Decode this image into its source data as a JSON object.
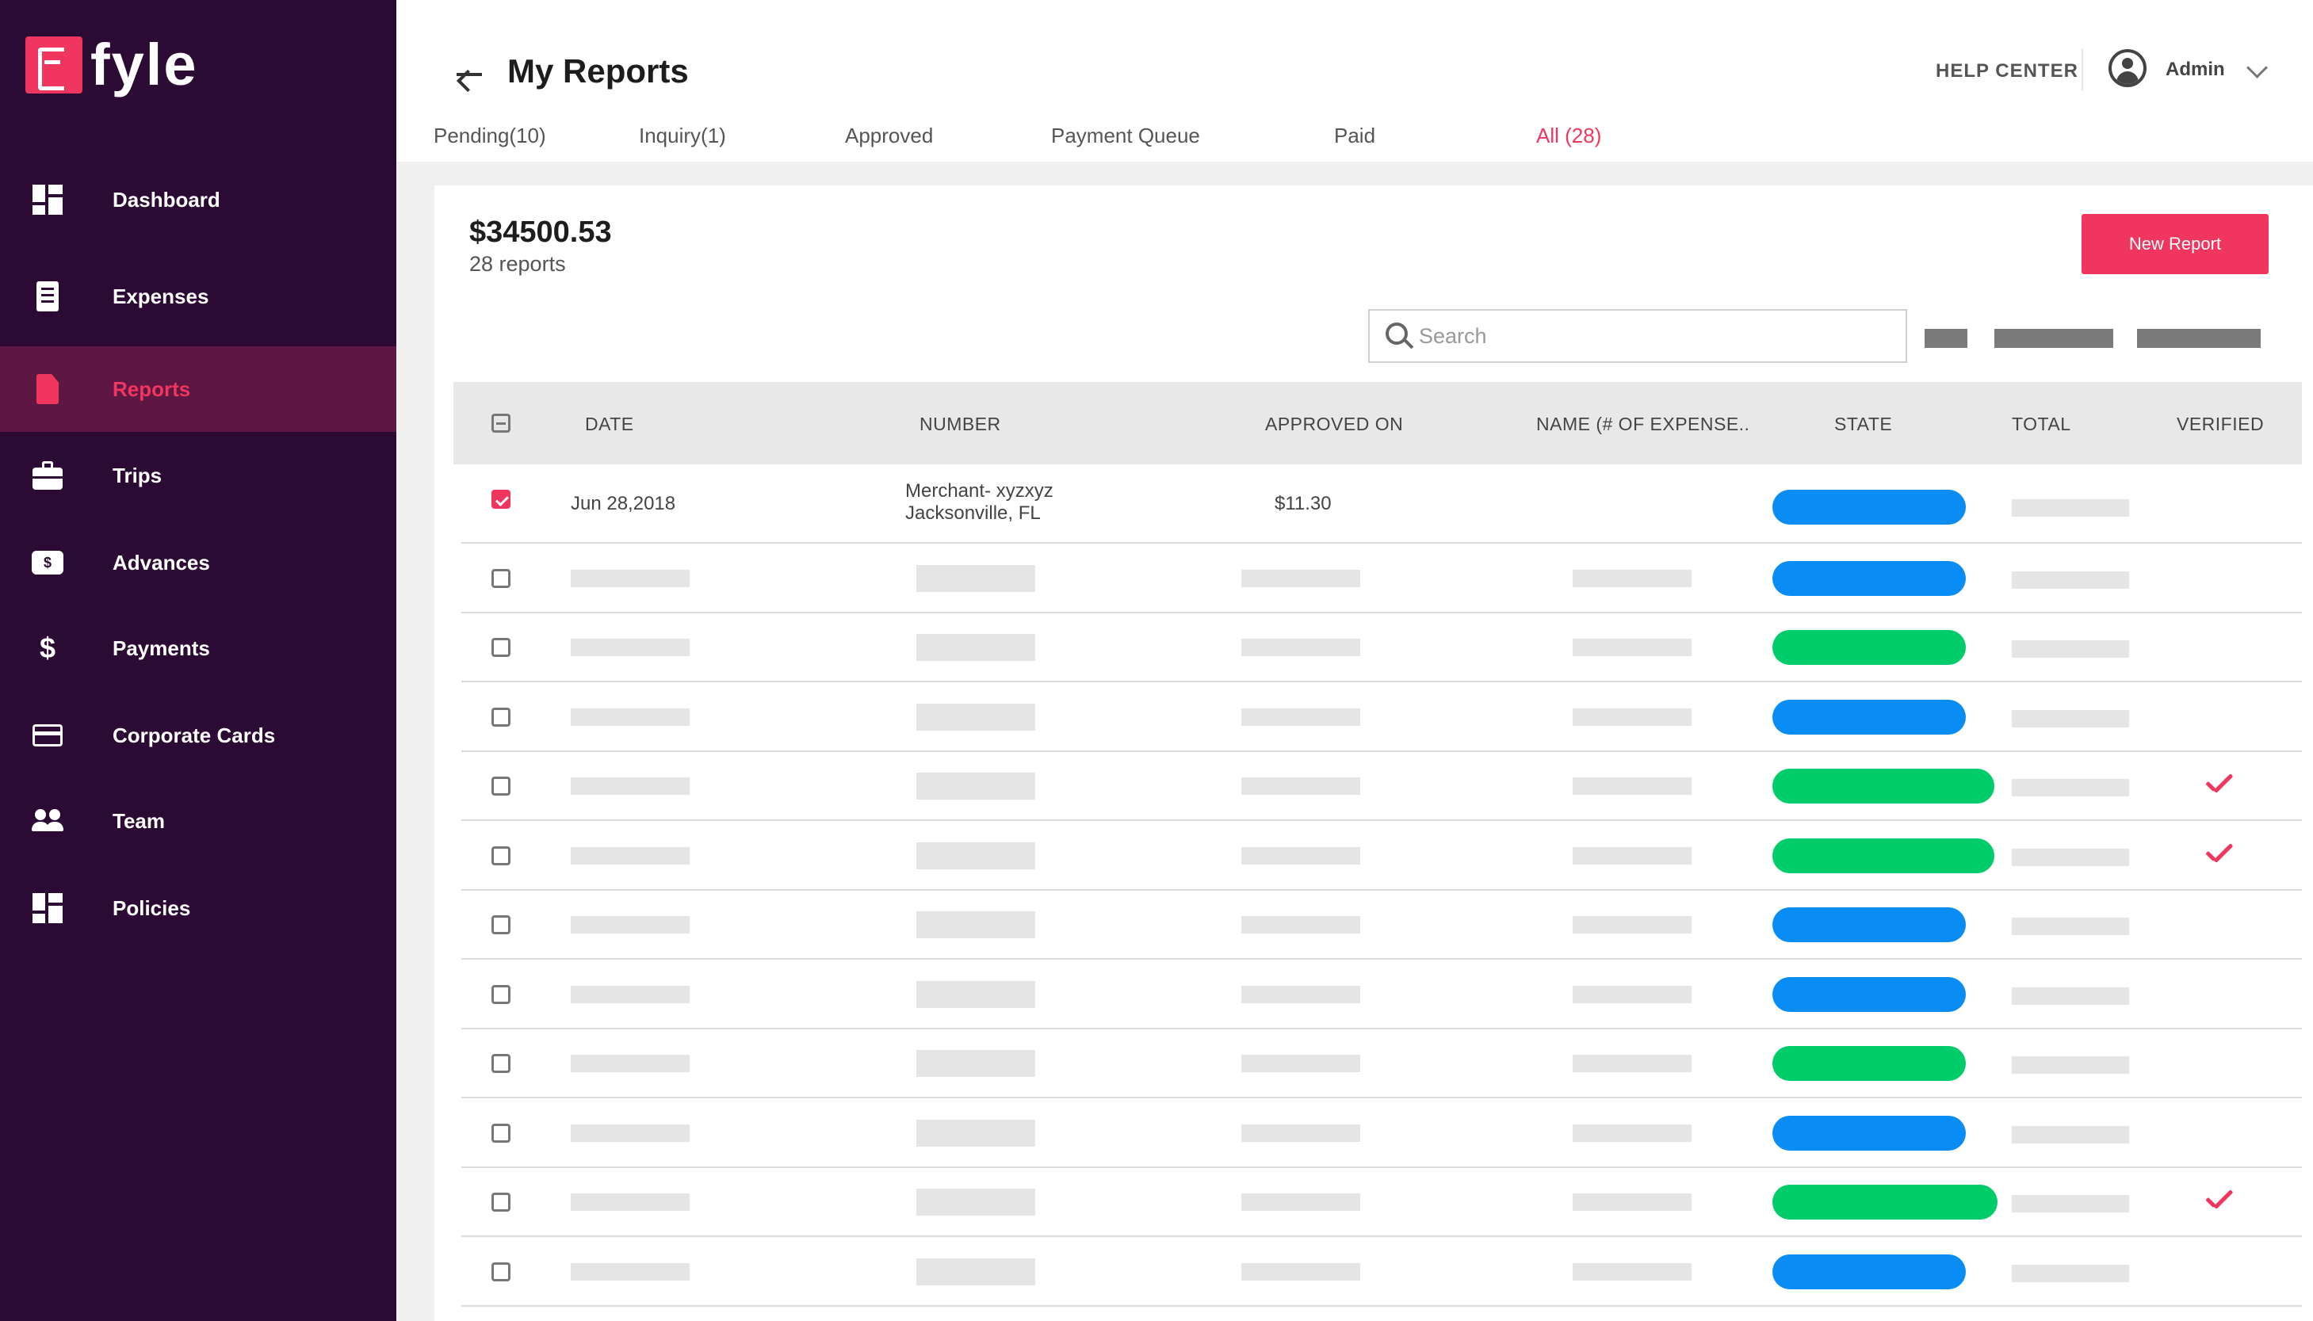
{
  "brand": {
    "name": "fyle",
    "accent": "#f0365e",
    "sidebar_bg": "#2b0a33",
    "sidebar_active_bg": "#5e1643"
  },
  "sidebar": {
    "items": [
      {
        "label": "Dashboard",
        "icon": "dashboard-icon"
      },
      {
        "label": "Expenses",
        "icon": "receipt-icon"
      },
      {
        "label": "Reports",
        "icon": "report-icon",
        "active": true
      },
      {
        "label": "Trips",
        "icon": "briefcase-icon"
      },
      {
        "label": "Advances",
        "icon": "money-icon"
      },
      {
        "label": "Payments",
        "icon": "dollar-icon"
      },
      {
        "label": "Corporate Cards",
        "icon": "credit-card-icon"
      },
      {
        "label": "Team",
        "icon": "team-icon"
      },
      {
        "label": "Policies",
        "icon": "policies-icon"
      }
    ]
  },
  "header": {
    "title": "My Reports",
    "help_center": "HELP CENTER",
    "user": "Admin"
  },
  "tabs": [
    {
      "label": "Pending(10)"
    },
    {
      "label": "Inquiry(1)"
    },
    {
      "label": "Approved"
    },
    {
      "label": "Payment Queue"
    },
    {
      "label": "Paid"
    },
    {
      "label": "All (28)",
      "active": true
    }
  ],
  "summary": {
    "amount": "$34500.53",
    "count": "28 reports"
  },
  "actions": {
    "new_report": "New Report"
  },
  "search": {
    "placeholder": "Search",
    "value": ""
  },
  "table": {
    "columns": [
      "DATE",
      "NUMBER",
      "APPROVED ON",
      "NAME (# OF EXPENSE..",
      "STATE",
      "TOTAL",
      "VERIFIED"
    ],
    "state_colors": {
      "blue": "#0a8cf5",
      "green": "#00cc6a"
    },
    "first_row": {
      "date": "Jun 28,2018",
      "number_line1": "Merchant- xyzxyz",
      "number_line2": "Jacksonville, FL",
      "approved_on": "$11.30",
      "checked": true,
      "state": "blue",
      "verified": false
    },
    "rows": [
      {
        "checked": false,
        "state": "blue",
        "verified": false
      },
      {
        "checked": false,
        "state": "green",
        "verified": false
      },
      {
        "checked": false,
        "state": "blue",
        "verified": false
      },
      {
        "checked": false,
        "state": "green",
        "verified": true
      },
      {
        "checked": false,
        "state": "green",
        "verified": true
      },
      {
        "checked": false,
        "state": "blue",
        "verified": false
      },
      {
        "checked": false,
        "state": "blue",
        "verified": false
      },
      {
        "checked": false,
        "state": "green",
        "verified": false
      },
      {
        "checked": false,
        "state": "blue",
        "verified": false
      },
      {
        "checked": false,
        "state": "green",
        "verified": true
      },
      {
        "checked": false,
        "state": "blue",
        "verified": false
      }
    ]
  }
}
